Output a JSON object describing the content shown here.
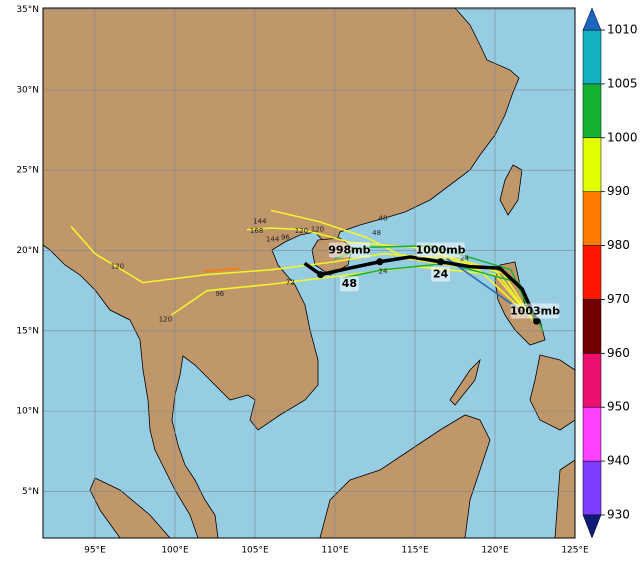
{
  "chart_data": {
    "type": "track-map",
    "xlim": [
      91.75,
      125
    ],
    "ylim": [
      2.1,
      35.1
    ],
    "xticks": [
      {
        "value": 95,
        "label": "95°E"
      },
      {
        "value": 100,
        "label": "100°E"
      },
      {
        "value": 105,
        "label": "105°E"
      },
      {
        "value": 110,
        "label": "110°E"
      },
      {
        "value": 115,
        "label": "115°E"
      },
      {
        "value": 120,
        "label": "120°E"
      },
      {
        "value": 125,
        "label": "125°E"
      }
    ],
    "yticks": [
      {
        "value": 5,
        "label": "5°N"
      },
      {
        "value": 10,
        "label": "10°N"
      },
      {
        "value": 15,
        "label": "15°N"
      },
      {
        "value": 20,
        "label": "20°N"
      },
      {
        "value": 25,
        "label": "25°N"
      },
      {
        "value": 30,
        "label": "30°N"
      },
      {
        "value": 35,
        "label": "35°N"
      }
    ],
    "grid": true,
    "colorbar": {
      "ticks": [
        930,
        940,
        950,
        960,
        970,
        980,
        990,
        1000,
        1005,
        1010
      ],
      "colors": [
        "#7d3cff",
        "#ff40ff",
        "#ec0f6e",
        "#720000",
        "#ff1600",
        "#ff7a00",
        "#e3ff00",
        "#16b333",
        "#12b1c2"
      ],
      "under_color": "#101a7a",
      "over_color": "#1f65c4"
    },
    "tracks": [
      {
        "color": "#f2f52a",
        "lon": [
          122.5,
          120.5,
          117,
          113,
          110,
          106,
          102,
          98,
          95,
          93.5
        ],
        "lat": [
          15.5,
          18.6,
          19.5,
          19.8,
          19.3,
          18.8,
          18.5,
          18,
          19.8,
          21.5
        ]
      },
      {
        "color": "#f2f52a",
        "lon": [
          122.5,
          120,
          115,
          111,
          108,
          106,
          104.5
        ],
        "lat": [
          15.5,
          18.8,
          20.2,
          20.5,
          21.3,
          21.4,
          21.3
        ]
      },
      {
        "color": "#f2f52a",
        "lon": [
          122.5,
          120,
          115,
          111,
          106,
          102,
          99.8
        ],
        "lat": [
          15.5,
          18.5,
          19,
          18.5,
          17.9,
          17.5,
          16
        ]
      },
      {
        "color": "#f2f52a",
        "lon": [
          122,
          119,
          114.5,
          112,
          109,
          106
        ],
        "lat": [
          16,
          18.8,
          19.5,
          20.8,
          21.8,
          22.5
        ]
      },
      {
        "color": "#1db33a",
        "lon": [
          122.5,
          121,
          116,
          112,
          110
        ],
        "lat": [
          15.5,
          18.8,
          20.3,
          20.2,
          19.5
        ]
      },
      {
        "color": "#1db33a",
        "lon": [
          123,
          121.5,
          117,
          113,
          110.5
        ],
        "lat": [
          15,
          18,
          19.2,
          18.8,
          18.3
        ]
      },
      {
        "color": "#ff7a00",
        "lon": [
          104,
          101.8
        ],
        "lat": [
          18.9,
          18.7
        ]
      },
      {
        "color": "#2a6fb5",
        "lon": [
          122,
          117
        ],
        "lat": [
          16,
          19.5
        ]
      }
    ],
    "mean_track": {
      "color": "#000000",
      "lon": [
        108.1,
        109.1,
        110.9,
        112.8,
        114.7,
        116.6,
        118.4,
        120.3,
        121.7,
        122.6
      ],
      "lat": [
        19.2,
        18.5,
        18.9,
        19.3,
        19.6,
        19.3,
        19.0,
        18.9,
        17.6,
        15.6
      ]
    },
    "pressure_labels": [
      {
        "text": "1003mb",
        "lon": 122.5,
        "lat": 16.2
      },
      {
        "text": "1000mb",
        "lon": 116.6,
        "lat": 20.0
      },
      {
        "text": "998mb",
        "lon": 110.9,
        "lat": 20.0
      }
    ],
    "hour_labels": [
      {
        "text": "24",
        "lon": 116.6,
        "lat": 18.5
      },
      {
        "text": "48",
        "lon": 110.9,
        "lat": 17.9
      }
    ],
    "member_labels": [
      {
        "text": "120",
        "lon": 108.9,
        "lat": 21.3
      },
      {
        "text": "144",
        "lon": 105.3,
        "lat": 21.8
      },
      {
        "text": "168",
        "lon": 105.1,
        "lat": 21.2
      },
      {
        "text": "144",
        "lon": 106.1,
        "lat": 20.7
      },
      {
        "text": "120",
        "lon": 107.9,
        "lat": 21.2
      },
      {
        "text": "120",
        "lon": 96.4,
        "lat": 19.0
      },
      {
        "text": "120",
        "lon": 99.4,
        "lat": 15.7
      },
      {
        "text": "96",
        "lon": 102.8,
        "lat": 17.3
      },
      {
        "text": "96",
        "lon": 106.9,
        "lat": 20.8
      },
      {
        "text": "72",
        "lon": 107.2,
        "lat": 18.0
      },
      {
        "text": "48",
        "lon": 113.0,
        "lat": 22.0
      },
      {
        "text": "48",
        "lon": 112.6,
        "lat": 21.1
      },
      {
        "text": "24",
        "lon": 113.0,
        "lat": 18.7
      },
      {
        "text": "24",
        "lon": 118.1,
        "lat": 19.5
      }
    ]
  }
}
